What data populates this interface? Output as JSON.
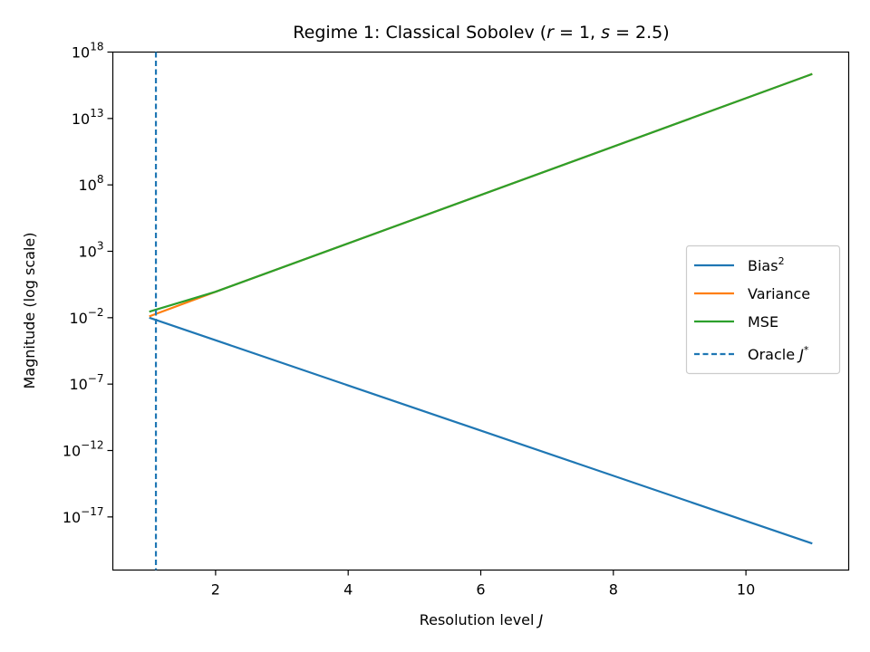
{
  "chart_data": {
    "type": "line",
    "title": {
      "main": "Regime 1: Classical Sobolev (",
      "r": "r",
      "r_eq": " = 1, ",
      "s": "s",
      "s_eq": " = 2.5)"
    },
    "xlabel": {
      "text": "Resolution level ",
      "var": "J"
    },
    "ylabel": "Magnitude (log scale)",
    "xlim": [
      0.45,
      11.55
    ],
    "ylim_log10": [
      -21,
      18
    ],
    "yscale": "log",
    "x_ticks": [
      2,
      4,
      6,
      8,
      10
    ],
    "y_ticks": [
      {
        "base": "10",
        "exp": "18",
        "value": 18
      },
      {
        "base": "10",
        "exp": "13",
        "value": 13
      },
      {
        "base": "10",
        "exp": "8",
        "value": 8
      },
      {
        "base": "10",
        "exp": "3",
        "value": 3
      },
      {
        "base": "10",
        "exp": "−2",
        "value": -2
      },
      {
        "base": "10",
        "exp": "−7",
        "value": -7
      },
      {
        "base": "10",
        "exp": "−12",
        "value": -12
      },
      {
        "base": "10",
        "exp": "−17",
        "value": -17
      }
    ],
    "grid": false,
    "legend_position": "center-right",
    "series": [
      {
        "name": "Bias",
        "sup": "2",
        "color": "#1f77b4",
        "style": "solid",
        "x": [
          1,
          11
        ],
        "log10_y": [
          -2,
          -19.0
        ]
      },
      {
        "name": "Variance",
        "color": "#ff7f0e",
        "style": "solid",
        "x": [
          1,
          2,
          11
        ],
        "log10_y": [
          -1.9,
          -0.05,
          16.35
        ]
      },
      {
        "name": "MSE",
        "color": "#2ca02c",
        "style": "solid",
        "x": [
          1,
          2,
          11
        ],
        "log10_y": [
          -1.55,
          -0.05,
          16.35
        ]
      }
    ],
    "oracle_line": {
      "name": "Oracle ",
      "var": "J",
      "sup": "*",
      "color": "#1f77b4",
      "style": "dashed",
      "x": 1.1
    }
  }
}
